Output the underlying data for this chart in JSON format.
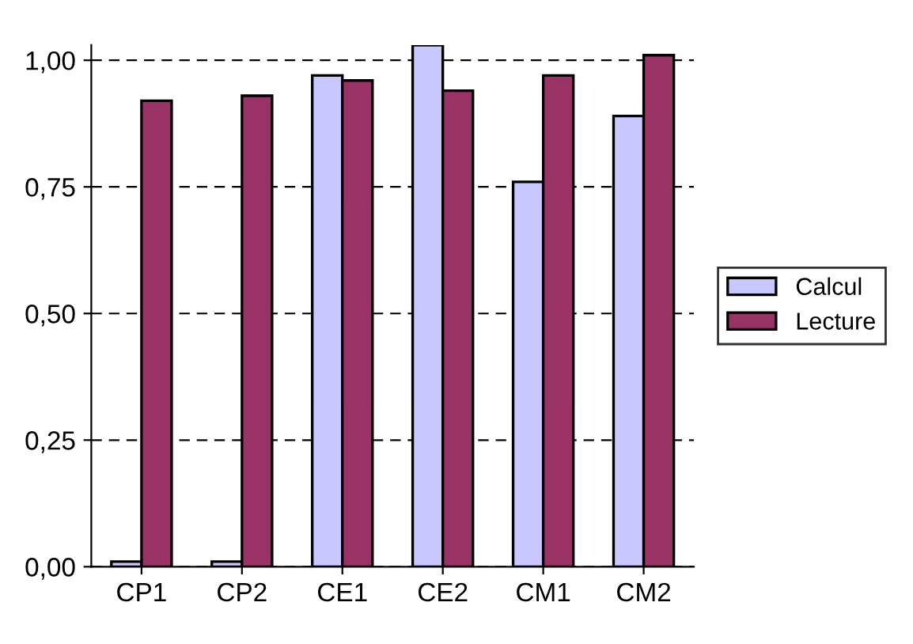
{
  "chart_data": {
    "type": "bar",
    "categories": [
      "CP1",
      "CP2",
      "CE1",
      "CE2",
      "CM1",
      "CM2"
    ],
    "series": [
      {
        "name": "Calcul",
        "color": "#c8c8ff",
        "values": [
          0.01,
          0.01,
          0.97,
          1.03,
          0.76,
          0.89
        ]
      },
      {
        "name": "Lecture",
        "color": "#993366",
        "values": [
          0.92,
          0.93,
          0.96,
          0.94,
          0.97,
          1.01
        ]
      }
    ],
    "ylim": [
      0,
      1.03
    ],
    "yticks": [
      {
        "value": 0,
        "label": "0,00"
      },
      {
        "value": 0.25,
        "label": "0,25"
      },
      {
        "value": 0.5,
        "label": "0,50"
      },
      {
        "value": 0.75,
        "label": "0,75"
      },
      {
        "value": 1,
        "label": "1,00"
      }
    ],
    "grid": "y",
    "line_style": "dashed",
    "legend": "right"
  }
}
